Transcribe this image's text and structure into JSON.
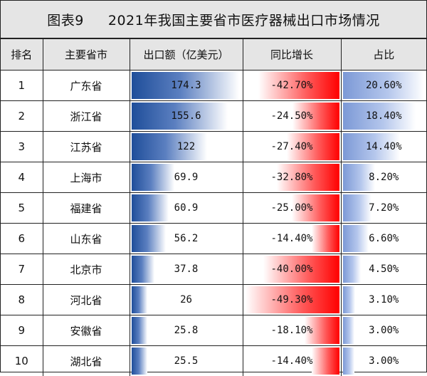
{
  "title": {
    "figure_label": "图表9",
    "text": "2021年我国主要省市医疗器械出口市场情况"
  },
  "columns": [
    "排名",
    "主要省市",
    "出口额（亿美元）",
    "同比增长",
    "占比"
  ],
  "rows": [
    {
      "rank": "1",
      "province": "广东省",
      "export": "174.3",
      "growth": "-42.70%",
      "share": "20.60%"
    },
    {
      "rank": "2",
      "province": "浙江省",
      "export": "155.6",
      "growth": "-24.50%",
      "share": "18.40%"
    },
    {
      "rank": "3",
      "province": "江苏省",
      "export": "122",
      "growth": "-27.40%",
      "share": "14.40%"
    },
    {
      "rank": "4",
      "province": "上海市",
      "export": "69.9",
      "growth": "-32.80%",
      "share": "8.20%"
    },
    {
      "rank": "5",
      "province": "福建省",
      "export": "60.9",
      "growth": "-25.00%",
      "share": "7.20%"
    },
    {
      "rank": "6",
      "province": "山东省",
      "export": "56.2",
      "growth": "-14.40%",
      "share": "6.60%"
    },
    {
      "rank": "7",
      "province": "北京市",
      "export": "37.8",
      "growth": "-40.00%",
      "share": "4.50%"
    },
    {
      "rank": "8",
      "province": "河北省",
      "export": "26",
      "growth": "-49.30%",
      "share": "3.10%"
    },
    {
      "rank": "9",
      "province": "安徽省",
      "export": "25.8",
      "growth": "-18.10%",
      "share": "3.00%"
    },
    {
      "rank": "10",
      "province": "湖北省",
      "export": "25.5",
      "growth": "-14.40%",
      "share": "3.00%"
    }
  ],
  "colors": {
    "header_bg": "#e5e5e5",
    "export_bar": "#1f4e9a",
    "growth_bar": "#ff0000",
    "share_bar": "#7c99d6"
  }
}
